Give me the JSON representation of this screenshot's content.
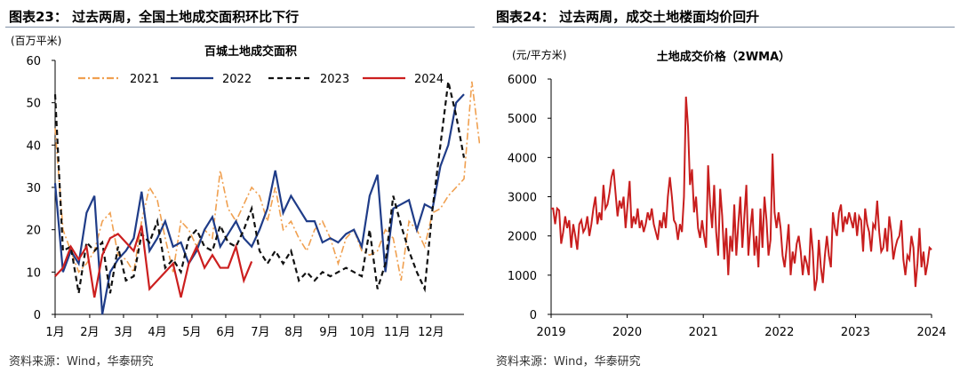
{
  "panels": {
    "left": {
      "figure_title": "图表23：  过去两周，全国土地成交面积环比下行",
      "source": "资料来源：Wind，华泰研究"
    },
    "right": {
      "figure_title": "图表24：  过去两周，成交土地楼面均价回升",
      "source": "资料来源：Wind，华泰研究"
    }
  },
  "chart_data": [
    {
      "type": "line",
      "title": "百城土地成交面积",
      "unit_label": "(百万平米)",
      "ylim": [
        0,
        60
      ],
      "yticks": [
        0,
        10,
        20,
        30,
        40,
        50,
        60
      ],
      "xlim": [
        0,
        52
      ],
      "xtick_labels": [
        "1月",
        "2月",
        "3月",
        "4月",
        "5月",
        "6月",
        "7月",
        "8月",
        "9月",
        "10月",
        "11月",
        "12月"
      ],
      "xtick_weeks": [
        0,
        4.4,
        8.7,
        13,
        17.4,
        21.7,
        26.1,
        30.4,
        34.8,
        39.1,
        43.5,
        47.8
      ],
      "grid": false,
      "legend": "top",
      "series": [
        {
          "name": "2021",
          "color": "#f0a050",
          "dash": "8,3,2,3",
          "values": [
            44,
            20,
            15,
            10,
            12,
            15,
            22,
            24,
            14,
            13,
            10,
            22,
            30,
            27,
            18,
            10,
            22,
            20,
            16,
            20,
            18,
            34,
            25,
            22,
            26,
            30,
            28,
            22,
            30,
            20,
            22,
            18,
            15,
            20,
            22,
            18,
            12,
            18,
            20,
            15,
            14,
            15,
            20,
            18,
            8,
            22,
            20,
            16,
            24,
            25,
            28,
            30,
            32,
            55,
            40
          ]
        },
        {
          "name": "2022",
          "color": "#1f3c88",
          "dash": "",
          "values": [
            31,
            10,
            15,
            12,
            24,
            28,
            0,
            10,
            13,
            15,
            18,
            29,
            15,
            18,
            22,
            16,
            17,
            12,
            15,
            20,
            23,
            16,
            19,
            22,
            18,
            16,
            20,
            25,
            34,
            24,
            28,
            25,
            22,
            22,
            17,
            18,
            17,
            19,
            20,
            16,
            28,
            33,
            10,
            25,
            26,
            27,
            20,
            26,
            25,
            35,
            40,
            50,
            52
          ]
        },
        {
          "name": "2023",
          "color": "#111111",
          "dash": "6,4",
          "values": [
            52,
            15,
            16,
            5,
            17,
            15,
            17,
            5,
            16,
            8,
            9,
            19,
            17,
            22,
            11,
            13,
            10,
            18,
            20,
            16,
            15,
            21,
            17,
            16,
            20,
            25,
            15,
            12,
            15,
            12,
            15,
            8,
            10,
            8,
            10,
            9,
            10,
            11,
            10,
            9,
            20,
            6,
            12,
            28,
            21,
            15,
            10,
            6,
            25,
            40,
            55,
            47,
            37
          ]
        },
        {
          "name": "2024",
          "color": "#cc1f1f",
          "dash": "",
          "values": [
            9,
            11,
            16,
            13,
            16,
            4,
            14,
            18,
            19,
            17,
            15,
            21,
            6,
            8,
            10,
            12,
            4,
            12,
            16,
            11,
            14,
            11,
            11,
            16,
            8,
            12.5
          ]
        }
      ]
    },
    {
      "type": "line",
      "title": "土地成交价格（2WMA）",
      "unit_label": "(元/平方米)",
      "ylim": [
        0,
        6000
      ],
      "yticks": [
        0,
        1000,
        2000,
        3000,
        4000,
        5000,
        6000
      ],
      "xlim": [
        "2019-01",
        "2024-01"
      ],
      "xtick_labels": [
        "2019",
        "2020",
        "2021",
        "2022",
        "2023",
        "2024"
      ],
      "grid": false,
      "series": [
        {
          "color": "#c81e1e",
          "x_start": "2019-01",
          "x_end": "2024-01",
          "values": [
            2700,
            2700,
            2300,
            2700,
            2650,
            1800,
            2100,
            2500,
            2200,
            2400,
            1700,
            2300,
            2000,
            1650,
            2300,
            2400,
            2100,
            2200,
            2500,
            2000,
            2300,
            2700,
            3000,
            2300,
            2600,
            2400,
            3300,
            2700,
            2800,
            3100,
            3500,
            3700,
            3100,
            2500,
            2900,
            2700,
            3000,
            2200,
            2800,
            3400,
            2200,
            2500,
            2300,
            2700,
            2200,
            2400,
            2100,
            2300,
            2600,
            2400,
            2700,
            2300,
            2100,
            1900,
            2400,
            2200,
            2600,
            2200,
            3000,
            3500,
            3000,
            2400,
            2300,
            1900,
            2300,
            2100,
            3000,
            5550,
            4800,
            3300,
            3700,
            2600,
            3000,
            2200,
            1950,
            2400,
            2000,
            1700,
            3800,
            2800,
            2200,
            3300,
            2100,
            1500,
            3200,
            2500,
            1400,
            2200,
            1000,
            2000,
            1600,
            2800,
            1500,
            2300,
            3000,
            1700,
            2500,
            3300,
            1500,
            2200,
            2700,
            1500,
            2000,
            1200,
            2700,
            1700,
            3000,
            2400,
            1500,
            1900,
            4100,
            2600,
            2200,
            2600,
            2200,
            1500,
            1200,
            1700,
            2300,
            1000,
            1600,
            1300,
            1800,
            2000,
            1600,
            1000,
            1500,
            1300,
            1000,
            2200,
            1600,
            600,
            900,
            1900,
            1200,
            800,
            1500,
            2000,
            1500,
            1200,
            2600,
            2200,
            2000,
            2600,
            2800,
            2100,
            2500,
            2300,
            2600,
            2400,
            2200,
            2600,
            2000,
            2500,
            2400,
            1600,
            2700,
            2300,
            2100,
            1600,
            2300,
            2200,
            2900,
            2100,
            1600,
            1700,
            2200,
            1600,
            2500,
            2100,
            1400,
            1700,
            1900,
            2000,
            2400,
            1400,
            1000,
            1500,
            1400,
            2000,
            1700,
            700,
            1300,
            2200,
            1200,
            1600,
            1000,
            1300,
            1700,
            1650
          ]
        }
      ]
    }
  ]
}
